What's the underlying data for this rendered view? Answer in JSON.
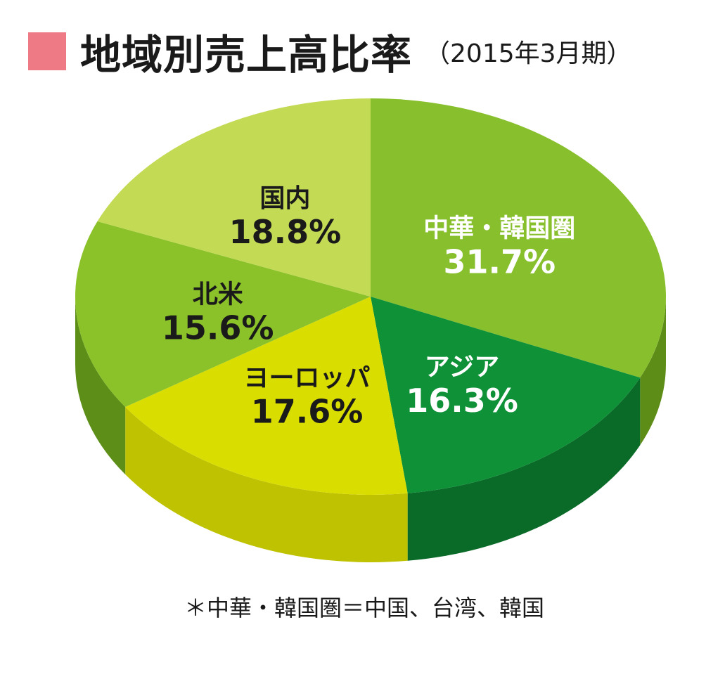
{
  "title": "地域別売上高比率",
  "subtitle": "（2015年3月期）",
  "footnote": "＊中華・韓国圏＝中国、台湾、韓国",
  "colors": {
    "title_marker": "#ee7a85"
  },
  "chart_data": {
    "type": "pie",
    "title": "地域別売上高比率",
    "subtitle": "（2015年3月期）",
    "unit": "%",
    "slices": [
      {
        "name": "中華・韓国圏",
        "value": 31.7,
        "label": "31.7%",
        "top_color": "#88bf2c",
        "side_color": "#5e8d17",
        "text_color": "#ffffff"
      },
      {
        "name": "アジア",
        "value": 16.3,
        "label": "16.3%",
        "top_color": "#0f9138",
        "side_color": "#0a6a27",
        "text_color": "#ffffff"
      },
      {
        "name": "ヨーロッパ",
        "value": 17.6,
        "label": "17.6%",
        "top_color": "#dade00",
        "side_color": "#bec200",
        "text_color": "#1a1a1a"
      },
      {
        "name": "北米",
        "value": 15.6,
        "label": "15.6%",
        "top_color": "#8cc229",
        "side_color": "#5d8e18",
        "text_color": "#1a1a1a"
      },
      {
        "name": "国内",
        "value": 18.8,
        "label": "18.8%",
        "top_color": "#c3da55",
        "side_color": "#9cb435",
        "text_color": "#1a1a1a"
      }
    ]
  }
}
